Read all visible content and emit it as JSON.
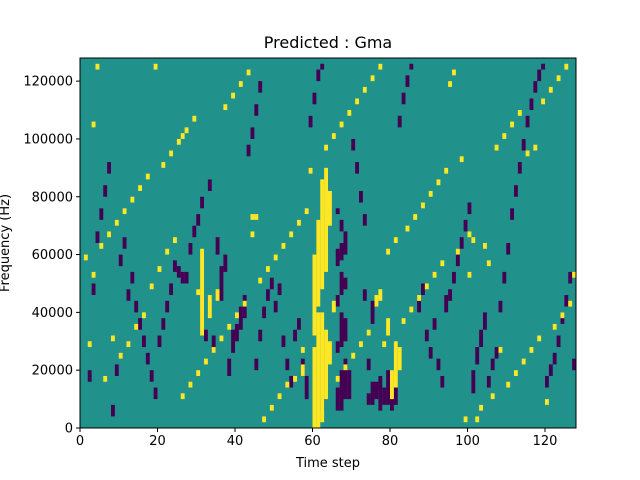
{
  "chart_data": {
    "type": "heatmap",
    "title": "Predicted : Gma",
    "xlabel": "Time step",
    "ylabel": "Frequency (Hz)",
    "xlim": [
      0,
      128
    ],
    "ylim": [
      0,
      128000
    ],
    "xticks": [
      0,
      20,
      40,
      60,
      80,
      100,
      120
    ],
    "yticks": [
      0,
      20000,
      40000,
      60000,
      80000,
      100000,
      120000
    ],
    "grid": false,
    "legend": "none",
    "colormap": "viridis",
    "class_colors": {
      "background": "#21918c",
      "low": "#440154",
      "high": "#fde725"
    },
    "rows": 128,
    "cols": 128,
    "bin_hz": 1000,
    "cells_high": [
      [
        60,
        0,
        28
      ],
      [
        61,
        0,
        40
      ],
      [
        62,
        2,
        40
      ],
      [
        63,
        10,
        34
      ],
      [
        64,
        22,
        30
      ],
      [
        60,
        32,
        60
      ],
      [
        61,
        42,
        72
      ],
      [
        62,
        48,
        86
      ],
      [
        63,
        54,
        90
      ],
      [
        64,
        70,
        82
      ],
      [
        65,
        40,
        44
      ],
      [
        31,
        32,
        62
      ],
      [
        33,
        38,
        46
      ],
      [
        35,
        44,
        48
      ],
      [
        80,
        10,
        20
      ],
      [
        81,
        14,
        30
      ],
      [
        82,
        20,
        28
      ],
      [
        78,
        28,
        30
      ],
      [
        79,
        32,
        38
      ],
      [
        76,
        42,
        46
      ],
      [
        77,
        44,
        48
      ],
      [
        3,
        52,
        54
      ],
      [
        3,
        104,
        106
      ],
      [
        4,
        124,
        126
      ],
      [
        19,
        124,
        126
      ],
      [
        30,
        46,
        48
      ],
      [
        26,
        100,
        102
      ],
      [
        55,
        16,
        18
      ],
      [
        57,
        18,
        22
      ],
      [
        44,
        66,
        68
      ],
      [
        44,
        72,
        74
      ],
      [
        45,
        72,
        74
      ],
      [
        95,
        118,
        120
      ],
      [
        96,
        122,
        124
      ],
      [
        100,
        66,
        68
      ],
      [
        101,
        64,
        66
      ],
      [
        102,
        2,
        4
      ],
      [
        100,
        52,
        54
      ],
      [
        104,
        62,
        64
      ],
      [
        105,
        56,
        58
      ],
      [
        108,
        26,
        28
      ],
      [
        115,
        94,
        96
      ],
      [
        117,
        96,
        98
      ],
      [
        120,
        8,
        10
      ],
      [
        2,
        28,
        30
      ],
      [
        6,
        16,
        18
      ],
      [
        8,
        30,
        32
      ],
      [
        10,
        24,
        26
      ],
      [
        12,
        28,
        30
      ],
      [
        14,
        34,
        36
      ],
      [
        16,
        38,
        40
      ],
      [
        18,
        48,
        50
      ],
      [
        20,
        54,
        56
      ],
      [
        22,
        60,
        62
      ],
      [
        24,
        64,
        66
      ],
      [
        26,
        10,
        12
      ],
      [
        28,
        14,
        16
      ],
      [
        30,
        18,
        20
      ],
      [
        32,
        22,
        24
      ],
      [
        34,
        26,
        28
      ],
      [
        36,
        30,
        32
      ],
      [
        38,
        34,
        36
      ],
      [
        40,
        38,
        40
      ],
      [
        42,
        42,
        44
      ],
      [
        46,
        50,
        52
      ],
      [
        48,
        54,
        56
      ],
      [
        50,
        58,
        60
      ],
      [
        52,
        62,
        64
      ],
      [
        54,
        66,
        68
      ],
      [
        56,
        70,
        72
      ],
      [
        58,
        74,
        76
      ],
      [
        66,
        16,
        18
      ],
      [
        68,
        20,
        22
      ],
      [
        70,
        24,
        26
      ],
      [
        72,
        28,
        30
      ],
      [
        74,
        32,
        34
      ],
      [
        83,
        36,
        38
      ],
      [
        85,
        40,
        42
      ],
      [
        87,
        44,
        46
      ],
      [
        89,
        48,
        50
      ],
      [
        91,
        52,
        54
      ],
      [
        93,
        56,
        58
      ],
      [
        97,
        60,
        62
      ],
      [
        99,
        2,
        4
      ],
      [
        103,
        6,
        8
      ],
      [
        106,
        10,
        12
      ],
      [
        110,
        14,
        16
      ],
      [
        112,
        18,
        20
      ],
      [
        114,
        22,
        24
      ],
      [
        116,
        26,
        28
      ],
      [
        118,
        30,
        32
      ],
      [
        122,
        34,
        36
      ],
      [
        124,
        38,
        40
      ],
      [
        126,
        42,
        44
      ],
      [
        1,
        58,
        60
      ],
      [
        5,
        62,
        64
      ],
      [
        7,
        66,
        68
      ],
      [
        9,
        70,
        72
      ],
      [
        11,
        74,
        76
      ],
      [
        13,
        78,
        80
      ],
      [
        15,
        82,
        84
      ],
      [
        17,
        86,
        88
      ],
      [
        21,
        90,
        92
      ],
      [
        23,
        94,
        96
      ],
      [
        25,
        98,
        100
      ],
      [
        27,
        102,
        104
      ],
      [
        29,
        106,
        108
      ],
      [
        37,
        110,
        112
      ],
      [
        39,
        114,
        116
      ],
      [
        41,
        118,
        120
      ],
      [
        43,
        122,
        124
      ],
      [
        47,
        2,
        4
      ],
      [
        49,
        6,
        8
      ],
      [
        51,
        10,
        12
      ],
      [
        53,
        14,
        16
      ],
      [
        57,
        26,
        28
      ],
      [
        59,
        88,
        90
      ],
      [
        63,
        96,
        98
      ],
      [
        65,
        100,
        102
      ],
      [
        67,
        104,
        106
      ],
      [
        69,
        108,
        110
      ],
      [
        71,
        112,
        114
      ],
      [
        73,
        116,
        118
      ],
      [
        75,
        120,
        122
      ],
      [
        77,
        124,
        126
      ],
      [
        79,
        60,
        62
      ],
      [
        81,
        64,
        66
      ],
      [
        84,
        68,
        70
      ],
      [
        86,
        72,
        74
      ],
      [
        88,
        76,
        78
      ],
      [
        90,
        80,
        82
      ],
      [
        92,
        84,
        86
      ],
      [
        94,
        88,
        90
      ],
      [
        98,
        92,
        94
      ],
      [
        107,
        96,
        98
      ],
      [
        109,
        100,
        102
      ],
      [
        111,
        104,
        106
      ],
      [
        113,
        108,
        110
      ],
      [
        119,
        112,
        114
      ],
      [
        121,
        116,
        118
      ],
      [
        123,
        120,
        122
      ],
      [
        125,
        124,
        126
      ],
      [
        127,
        52,
        54
      ]
    ],
    "cells_low": [
      [
        58,
        10,
        18
      ],
      [
        62,
        6,
        10
      ],
      [
        66,
        6,
        14
      ],
      [
        67,
        6,
        20
      ],
      [
        68,
        10,
        24
      ],
      [
        69,
        10,
        20
      ],
      [
        66,
        26,
        30
      ],
      [
        67,
        28,
        40
      ],
      [
        68,
        30,
        38
      ],
      [
        66,
        42,
        46
      ],
      [
        67,
        46,
        54
      ],
      [
        68,
        48,
        52
      ],
      [
        66,
        56,
        62
      ],
      [
        67,
        58,
        64
      ],
      [
        68,
        60,
        68
      ],
      [
        67,
        68,
        72
      ],
      [
        66,
        74,
        76
      ],
      [
        74,
        8,
        12
      ],
      [
        75,
        8,
        16
      ],
      [
        76,
        10,
        16
      ],
      [
        77,
        6,
        18
      ],
      [
        78,
        8,
        14
      ],
      [
        79,
        8,
        20
      ],
      [
        80,
        6,
        12
      ],
      [
        81,
        8,
        14
      ],
      [
        74,
        20,
        24
      ],
      [
        75,
        36,
        44
      ],
      [
        73,
        44,
        48
      ],
      [
        39,
        26,
        34
      ],
      [
        40,
        30,
        36
      ],
      [
        41,
        34,
        42
      ],
      [
        42,
        38,
        46
      ],
      [
        38,
        18,
        24
      ],
      [
        25,
        52,
        56
      ],
      [
        26,
        50,
        54
      ],
      [
        27,
        50,
        54
      ],
      [
        36,
        44,
        56
      ],
      [
        37,
        54,
        60
      ],
      [
        35,
        60,
        66
      ],
      [
        32,
        30,
        34
      ],
      [
        34,
        26,
        32
      ],
      [
        57,
        18,
        24
      ],
      [
        45,
        20,
        24
      ],
      [
        46,
        30,
        34
      ],
      [
        47,
        38,
        42
      ],
      [
        48,
        44,
        48
      ],
      [
        49,
        48,
        52
      ],
      [
        50,
        40,
        44
      ],
      [
        51,
        46,
        50
      ],
      [
        52,
        28,
        32
      ],
      [
        53,
        20,
        24
      ],
      [
        54,
        14,
        18
      ],
      [
        55,
        30,
        34
      ],
      [
        56,
        34,
        38
      ],
      [
        87,
        40,
        44
      ],
      [
        88,
        46,
        50
      ],
      [
        89,
        30,
        34
      ],
      [
        90,
        24,
        28
      ],
      [
        91,
        34,
        38
      ],
      [
        92,
        20,
        24
      ],
      [
        93,
        14,
        18
      ],
      [
        94,
        40,
        46
      ],
      [
        95,
        44,
        48
      ],
      [
        96,
        50,
        54
      ],
      [
        97,
        56,
        60
      ],
      [
        98,
        62,
        66
      ],
      [
        99,
        68,
        72
      ],
      [
        100,
        74,
        78
      ],
      [
        101,
        12,
        20
      ],
      [
        102,
        22,
        28
      ],
      [
        103,
        28,
        34
      ],
      [
        104,
        34,
        40
      ],
      [
        105,
        14,
        18
      ],
      [
        106,
        20,
        24
      ],
      [
        107,
        24,
        28
      ],
      [
        108,
        40,
        44
      ],
      [
        109,
        50,
        54
      ],
      [
        110,
        60,
        64
      ],
      [
        111,
        72,
        76
      ],
      [
        112,
        80,
        84
      ],
      [
        113,
        88,
        92
      ],
      [
        114,
        96,
        100
      ],
      [
        115,
        104,
        108
      ],
      [
        116,
        110,
        114
      ],
      [
        117,
        116,
        120
      ],
      [
        118,
        120,
        124
      ],
      [
        119,
        124,
        126
      ],
      [
        120,
        14,
        18
      ],
      [
        121,
        18,
        22
      ],
      [
        122,
        22,
        26
      ],
      [
        123,
        28,
        32
      ],
      [
        124,
        36,
        40
      ],
      [
        125,
        42,
        46
      ],
      [
        126,
        50,
        54
      ],
      [
        127,
        20,
        24
      ],
      [
        20,
        28,
        32
      ],
      [
        21,
        34,
        38
      ],
      [
        22,
        40,
        44
      ],
      [
        23,
        46,
        50
      ],
      [
        24,
        54,
        58
      ],
      [
        28,
        60,
        64
      ],
      [
        29,
        66,
        70
      ],
      [
        30,
        70,
        74
      ],
      [
        31,
        76,
        80
      ],
      [
        33,
        82,
        86
      ],
      [
        12,
        44,
        48
      ],
      [
        13,
        50,
        54
      ],
      [
        14,
        40,
        44
      ],
      [
        15,
        34,
        38
      ],
      [
        16,
        28,
        32
      ],
      [
        17,
        22,
        26
      ],
      [
        18,
        16,
        20
      ],
      [
        19,
        10,
        14
      ],
      [
        8,
        4,
        8
      ],
      [
        9,
        18,
        22
      ],
      [
        10,
        56,
        60
      ],
      [
        11,
        62,
        66
      ],
      [
        2,
        16,
        20
      ],
      [
        3,
        46,
        50
      ],
      [
        4,
        64,
        68
      ],
      [
        5,
        72,
        76
      ],
      [
        6,
        80,
        84
      ],
      [
        7,
        88,
        92
      ],
      [
        43,
        94,
        98
      ],
      [
        44,
        100,
        104
      ],
      [
        45,
        108,
        112
      ],
      [
        46,
        116,
        120
      ],
      [
        59,
        104,
        108
      ],
      [
        60,
        112,
        116
      ],
      [
        61,
        120,
        124
      ],
      [
        62,
        124,
        126
      ],
      [
        70,
        96,
        100
      ],
      [
        71,
        88,
        92
      ],
      [
        72,
        78,
        82
      ],
      [
        73,
        70,
        74
      ],
      [
        82,
        104,
        108
      ],
      [
        83,
        112,
        116
      ],
      [
        84,
        118,
        122
      ],
      [
        85,
        124,
        126
      ]
    ]
  }
}
